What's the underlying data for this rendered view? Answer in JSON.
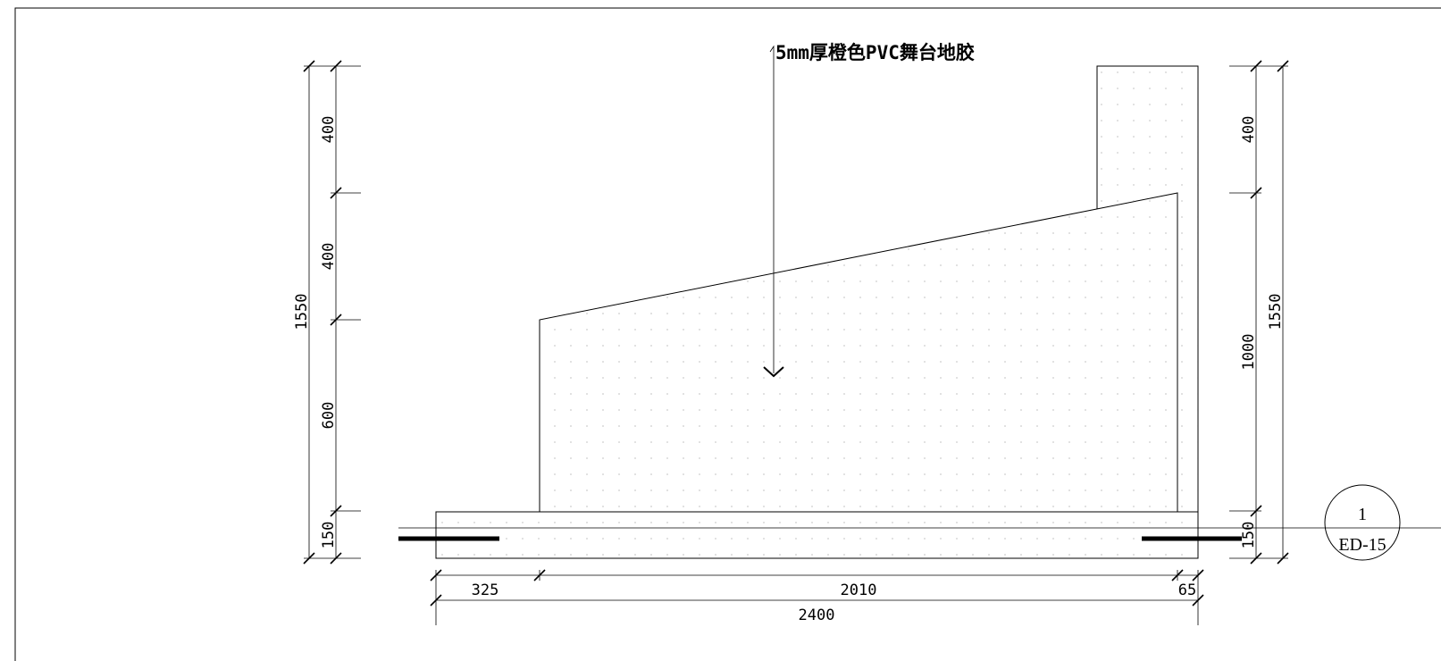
{
  "drawing": {
    "note_label": "5mm厚橙色PVC舞台地胶",
    "dims_left": {
      "seg_top": "400",
      "seg_mid": "400",
      "seg_low": "600",
      "seg_base": "150",
      "total": "1550"
    },
    "dims_right": {
      "seg_top": "400",
      "seg_mid": "1000",
      "seg_base": "150",
      "total": "1550"
    },
    "dims_bottom": {
      "seg_left": "325",
      "seg_mid": "2010",
      "seg_right": "65",
      "total": "2400"
    },
    "section_marker": {
      "number": "1",
      "sheet": "ED-15"
    }
  }
}
